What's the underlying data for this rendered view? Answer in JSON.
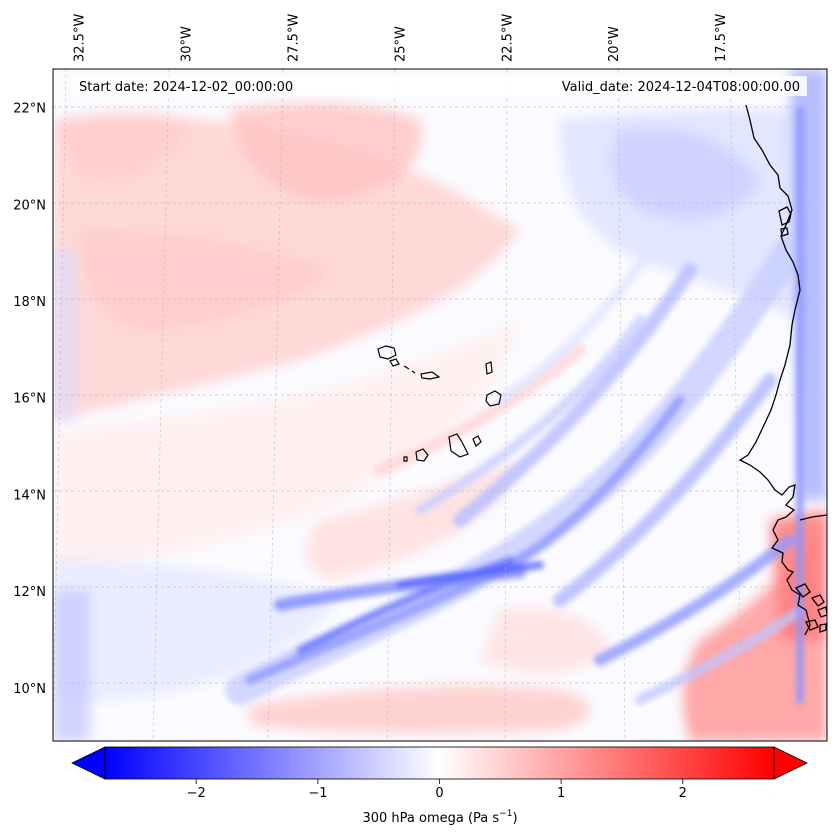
{
  "header": {
    "start_date": "Start date: 2024-12-02_00:00:00",
    "valid_date": "Valid_date: 2024-12-04T08:00:00.00"
  },
  "map": {
    "lon_range": [
      -33.1,
      -15.0
    ],
    "lat_range": [
      8.9,
      22.8
    ],
    "lon_labels": [
      {
        "lon": -32.5,
        "text": "32.5°W"
      },
      {
        "lon": -30.0,
        "text": "30°W"
      },
      {
        "lon": -27.5,
        "text": "27.5°W"
      },
      {
        "lon": -25.0,
        "text": "25°W"
      },
      {
        "lon": -22.5,
        "text": "22.5°W"
      },
      {
        "lon": -20.0,
        "text": "20°W"
      },
      {
        "lon": -17.5,
        "text": "17.5°W"
      }
    ],
    "lat_labels": [
      {
        "lat": 10,
        "text": "10°N"
      },
      {
        "lat": 12,
        "text": "12°N"
      },
      {
        "lat": 14,
        "text": "14°N"
      },
      {
        "lat": 16,
        "text": "16°N"
      },
      {
        "lat": 18,
        "text": "18°N"
      },
      {
        "lat": 20,
        "text": "20°N"
      },
      {
        "lat": 22,
        "text": "22°N"
      }
    ],
    "gridlines": "dashed"
  },
  "colorbar": {
    "vmin": -2.75,
    "vmax": 2.75,
    "colors": {
      "low": "#0000ff",
      "mid": "#ffffff",
      "high": "#ff0000"
    },
    "ticks": [
      {
        "value": -2,
        "text": "−2"
      },
      {
        "value": -1,
        "text": "−1"
      },
      {
        "value": 0,
        "text": "0"
      },
      {
        "value": 1,
        "text": "1"
      },
      {
        "value": 2,
        "text": "2"
      }
    ],
    "label_main": "300 hPa omega (Pa s",
    "label_sup": "−1",
    "label_end": ")"
  }
}
